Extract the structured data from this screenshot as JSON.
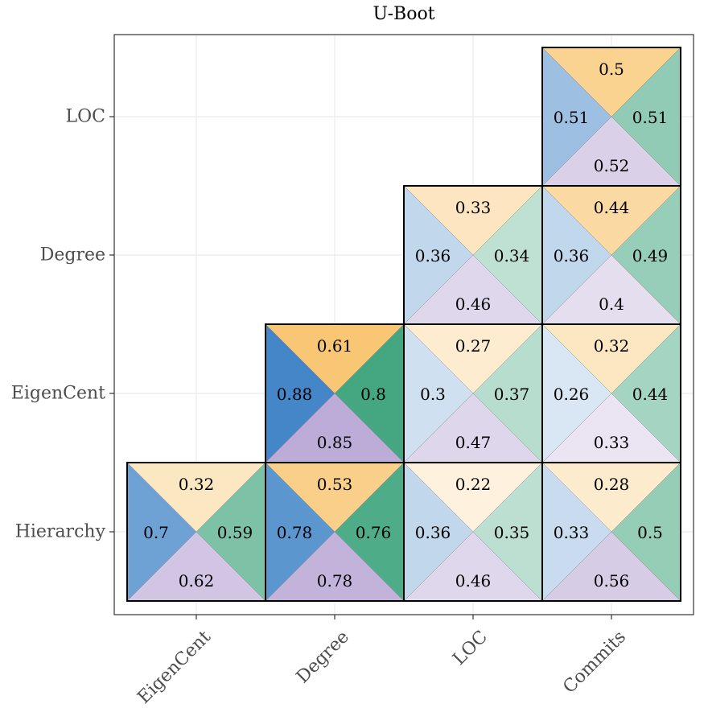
{
  "chart_data": {
    "type": "heatmap",
    "title": "U-Boot",
    "x_categories": [
      "EigenCent",
      "Degree",
      "LOC",
      "Commits"
    ],
    "y_categories": [
      "Hierarchy",
      "EigenCent",
      "Degree",
      "LOC"
    ],
    "grid": true,
    "triangle_colors": {
      "top": "#f5a623",
      "left": "#3f83c6",
      "right": "#2a9a6f",
      "bottom": "#b8a6d4"
    },
    "cells": [
      {
        "x": "EigenCent",
        "y": "Hierarchy",
        "top": 0.32,
        "left": 0.7,
        "right": 0.59,
        "bottom": 0.62
      },
      {
        "x": "Degree",
        "y": "Hierarchy",
        "top": 0.53,
        "left": 0.78,
        "right": 0.76,
        "bottom": 0.78
      },
      {
        "x": "LOC",
        "y": "Hierarchy",
        "top": 0.22,
        "left": 0.36,
        "right": 0.35,
        "bottom": 0.46
      },
      {
        "x": "Commits",
        "y": "Hierarchy",
        "top": 0.28,
        "left": 0.33,
        "right": 0.5,
        "bottom": 0.56
      },
      {
        "x": "Degree",
        "y": "EigenCent",
        "top": 0.61,
        "left": 0.88,
        "right": 0.8,
        "bottom": 0.85
      },
      {
        "x": "LOC",
        "y": "EigenCent",
        "top": 0.27,
        "left": 0.3,
        "right": 0.37,
        "bottom": 0.47
      },
      {
        "x": "Commits",
        "y": "EigenCent",
        "top": 0.32,
        "left": 0.26,
        "right": 0.44,
        "bottom": 0.33
      },
      {
        "x": "LOC",
        "y": "Degree",
        "top": 0.33,
        "left": 0.36,
        "right": 0.34,
        "bottom": 0.46
      },
      {
        "x": "Commits",
        "y": "Degree",
        "top": 0.44,
        "left": 0.36,
        "right": 0.49,
        "bottom": 0.4
      },
      {
        "x": "Commits",
        "y": "LOC",
        "top": 0.5,
        "left": 0.51,
        "right": 0.51,
        "bottom": 0.52
      }
    ]
  }
}
